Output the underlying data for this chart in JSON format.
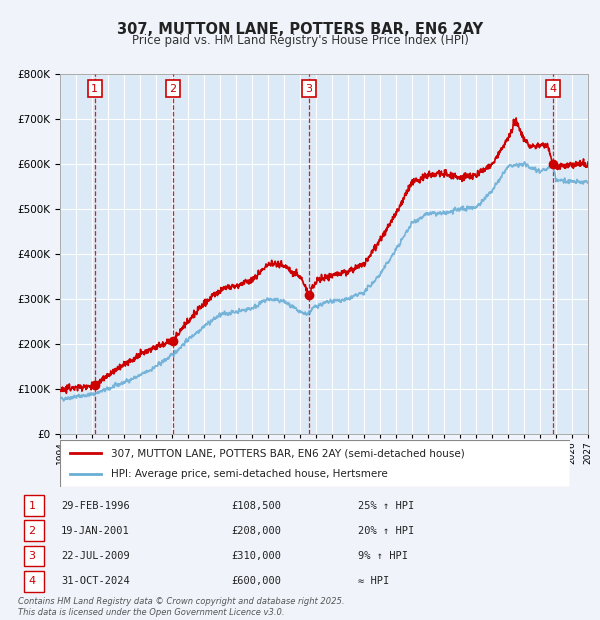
{
  "title": "307, MUTTON LANE, POTTERS BAR, EN6 2AY",
  "subtitle": "Price paid vs. HM Land Registry's House Price Index (HPI)",
  "ylabel": "",
  "bg_color": "#dce9f7",
  "plot_bg_color": "#dce9f7",
  "grid_color": "#ffffff",
  "hpi_line_color": "#6aaed6",
  "price_line_color": "#cc0000",
  "sale_marker_color": "#cc0000",
  "dashed_line_color": "#cc0000",
  "ylim": [
    0,
    800000
  ],
  "yticks": [
    0,
    100000,
    200000,
    300000,
    400000,
    500000,
    600000,
    700000,
    800000
  ],
  "ytick_labels": [
    "£0",
    "£100K",
    "£200K",
    "£300K",
    "£400K",
    "£500K",
    "£600K",
    "£700K",
    "£800K"
  ],
  "xmin": 1994.0,
  "xmax": 2027.0,
  "sales": [
    {
      "num": 1,
      "year": 1996.167,
      "price": 108500
    },
    {
      "num": 2,
      "year": 2001.05,
      "price": 208000
    },
    {
      "num": 3,
      "year": 2009.55,
      "price": 310000
    },
    {
      "num": 4,
      "year": 2024.83,
      "price": 600000
    }
  ],
  "sale_labels": [
    {
      "num": 1,
      "date": "29-FEB-1996",
      "price": "£108,500",
      "rel": "25% ↑ HPI"
    },
    {
      "num": 2,
      "date": "19-JAN-2001",
      "price": "£208,000",
      "rel": "20% ↑ HPI"
    },
    {
      "num": 3,
      "date": "22-JUL-2009",
      "price": "£310,000",
      "rel": "9% ↑ HPI"
    },
    {
      "num": 4,
      "date": "31-OCT-2024",
      "price": "£600,000",
      "rel": "≈ HPI"
    }
  ],
  "legend_labels": [
    "307, MUTTON LANE, POTTERS BAR, EN6 2AY (semi-detached house)",
    "HPI: Average price, semi-detached house, Hertsmere"
  ],
  "footnote": "Contains HM Land Registry data © Crown copyright and database right 2025.\nThis data is licensed under the Open Government Licence v3.0."
}
